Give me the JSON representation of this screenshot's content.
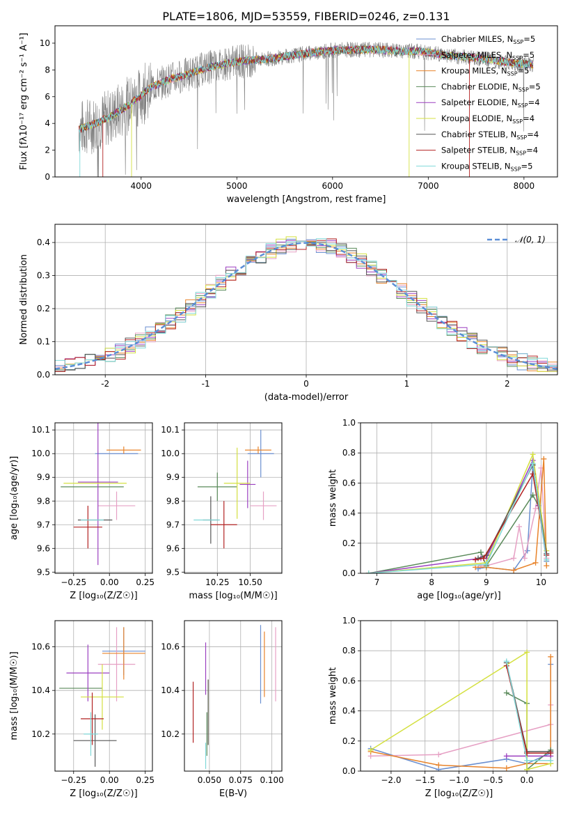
{
  "title": "PLATE=1806, MJD=53559, FIBERID=0246, z=0.131",
  "colors": {
    "chabrier_miles": "#6a8fd0",
    "salpeter_miles": "#e6a0c4",
    "kroupa_miles": "#e8832a",
    "chabrier_elodie": "#5a8a5a",
    "salpeter_elodie": "#9b3fc0",
    "kroupa_elodie": "#d4e040",
    "chabrier_stelib": "#555555",
    "salpeter_stelib": "#b22222",
    "kroupa_stelib": "#7fd8d8",
    "data_spectrum": "#808080",
    "normal_curve": "#5b8ed6",
    "grid": "#b0b0b0"
  },
  "chart_data": [
    {
      "id": "spectrum",
      "type": "line",
      "xlabel": "wavelength [Angstrom, rest frame]",
      "ylabel": "Flux [f$_\\lambda$10$^{-17}$ erg cm$^{-2}$ s$^{-1}$ A$^{-1}$]",
      "ylabel_display": "Flux [fλ10⁻¹⁷ erg cm⁻² s⁻¹ A⁻¹]",
      "xlim": [
        3100,
        8350
      ],
      "ylim": [
        0,
        11.3
      ],
      "xticks": [
        4000,
        5000,
        6000,
        7000,
        8000
      ],
      "yticks": [
        0,
        2,
        4,
        6,
        8,
        10
      ],
      "legend_position": "right",
      "legend": [
        {
          "key": "chabrier_miles",
          "label": "Chabrier MILES, N",
          "n": "5"
        },
        {
          "key": "salpeter_miles",
          "label": "Salpeter MILES, N",
          "n": "5"
        },
        {
          "key": "kroupa_miles",
          "label": "Kroupa MILES, N",
          "n": "5"
        },
        {
          "key": "chabrier_elodie",
          "label": "Chabrier ELODIE, N",
          "n": "5"
        },
        {
          "key": "salpeter_elodie",
          "label": "Salpeter ELODIE, N",
          "n": "4"
        },
        {
          "key": "kroupa_elodie",
          "label": "Kroupa ELODIE, N",
          "n": "4"
        },
        {
          "key": "chabrier_stelib",
          "label": "Chabrier STELIB, N",
          "n": "4"
        },
        {
          "key": "salpeter_stelib",
          "label": "Salpeter STELIB, N",
          "n": "4"
        },
        {
          "key": "kroupa_stelib",
          "label": "Kroupa STELIB, N",
          "n": "5"
        }
      ],
      "legend_sub": "SSP",
      "continuum": {
        "x": [
          3350,
          3500,
          3700,
          3900,
          4100,
          4300,
          4500,
          4700,
          4900,
          5100,
          5300,
          5500,
          5700,
          5900,
          6100,
          6300,
          6500,
          6700,
          6900,
          7100,
          7300,
          7500,
          7700,
          7900,
          8100
        ],
        "y": [
          3.6,
          3.9,
          4.6,
          5.5,
          6.7,
          7.3,
          7.7,
          8.2,
          8.5,
          8.7,
          8.8,
          9.0,
          9.2,
          9.4,
          9.5,
          9.5,
          9.5,
          9.4,
          9.4,
          9.2,
          9.0,
          8.9,
          8.7,
          8.5,
          8.4
        ]
      }
    },
    {
      "id": "residuals",
      "type": "histogram",
      "xlabel": "(data-model)/error",
      "ylabel": "Normed distribution",
      "xlim": [
        -2.5,
        2.5
      ],
      "ylim": [
        0,
        0.455
      ],
      "xticks": [
        -2,
        -1,
        0,
        1,
        2
      ],
      "yticks": [
        0.0,
        0.1,
        0.2,
        0.3,
        0.4
      ],
      "grid": true,
      "legend_position": "top-right",
      "normal_label": "𝒩(0, 1)",
      "bin_width": 0.1
    },
    {
      "id": "z_age",
      "type": "errorbar",
      "xlabel": "Z [log₁₀(Z/Z☉)]",
      "ylabel": "age  [log₁₀(age/yr)]",
      "xlim": [
        -0.38,
        0.3
      ],
      "ylim": [
        9.495,
        10.13
      ],
      "xticks": [
        -0.25,
        0.0,
        0.25
      ],
      "xtick_labels": [
        "−0.25",
        "0.00",
        "0.25"
      ],
      "yticks": [
        9.5,
        9.6,
        9.7,
        9.8,
        9.9,
        10.0,
        10.1
      ],
      "grid": true,
      "points": [
        {
          "s": "chabrier_miles",
          "x": 0.05,
          "xe": 0.15,
          "y": 10.0,
          "ye": 0.0
        },
        {
          "s": "salpeter_miles",
          "x": 0.05,
          "xe": 0.13,
          "y": 9.78,
          "ye": 0.06
        },
        {
          "s": "kroupa_miles",
          "x": 0.1,
          "xe": 0.12,
          "y": 10.015,
          "ye": 0.015
        },
        {
          "s": "chabrier_elodie",
          "x": -0.12,
          "xe": 0.22,
          "y": 9.86,
          "ye": 0.0
        },
        {
          "s": "salpeter_elodie",
          "x": -0.08,
          "xe": 0.14,
          "y": 9.88,
          "ye": 0.35
        },
        {
          "s": "kroupa_elodie",
          "x": -0.1,
          "xe": 0.22,
          "y": 9.875,
          "ye": 0.0
        },
        {
          "s": "chabrier_stelib",
          "x": -0.1,
          "xe": 0.12,
          "y": 9.72,
          "ye": 0.0
        },
        {
          "s": "salpeter_stelib",
          "x": -0.15,
          "xe": 0.1,
          "y": 9.69,
          "ye": 0.09
        },
        {
          "s": "kroupa_stelib",
          "x": -0.12,
          "xe": 0.08,
          "y": 9.72,
          "ye": 0.0
        }
      ]
    },
    {
      "id": "mass_age",
      "type": "errorbar",
      "xlabel": "mass [log₁₀(M/M☉)]",
      "ylabel": "",
      "xlim": [
        10.0,
        10.74
      ],
      "ylim": [
        9.495,
        10.13
      ],
      "xticks": [
        10.25,
        10.5
      ],
      "xtick_labels": [
        "10.25",
        "10.50"
      ],
      "yticks": [
        9.5,
        9.6,
        9.7,
        9.8,
        9.9,
        10.0,
        10.1
      ],
      "grid": true,
      "points": [
        {
          "s": "chabrier_miles",
          "x": 10.58,
          "xe": 0.1,
          "y": 10.0,
          "ye": 0.1
        },
        {
          "s": "salpeter_miles",
          "x": 10.6,
          "xe": 0.1,
          "y": 9.78,
          "ye": 0.06
        },
        {
          "s": "kroupa_miles",
          "x": 10.56,
          "xe": 0.1,
          "y": 10.015,
          "ye": 0.015
        },
        {
          "s": "chabrier_elodie",
          "x": 10.25,
          "xe": 0.15,
          "y": 9.86,
          "ye": 0.06
        },
        {
          "s": "salpeter_elodie",
          "x": 10.48,
          "xe": 0.06,
          "y": 9.87,
          "ye": 0.1
        },
        {
          "s": "kroupa_elodie",
          "x": 10.4,
          "xe": 0.1,
          "y": 9.875,
          "ye": 0.15
        },
        {
          "s": "chabrier_stelib",
          "x": 10.2,
          "xe": 0.06,
          "y": 9.72,
          "ye": 0.1
        },
        {
          "s": "salpeter_stelib",
          "x": 10.3,
          "xe": 0.1,
          "y": 9.7,
          "ye": 0.1
        },
        {
          "s": "kroupa_stelib",
          "x": 10.17,
          "xe": 0.1,
          "y": 9.72,
          "ye": 0.0
        }
      ]
    },
    {
      "id": "age_weight",
      "type": "line",
      "xlabel": "age  [log₁₀(age/yr)]",
      "ylabel": "mass weight",
      "xlim": [
        6.7,
        10.3
      ],
      "ylim": [
        0.0,
        1.0
      ],
      "xticks": [
        7,
        8,
        9,
        10
      ],
      "yticks": [
        0.0,
        0.2,
        0.4,
        0.6,
        0.8,
        1.0
      ],
      "grid": true,
      "series": [
        {
          "s": "chabrier_miles",
          "x": [
            8.85,
            9.0,
            9.5,
            9.75,
            9.85,
            10.1
          ],
          "y": [
            0.03,
            0.04,
            0.02,
            0.15,
            0.72,
            0.08
          ]
        },
        {
          "s": "salpeter_miles",
          "x": [
            8.9,
            9.0,
            9.5,
            9.6,
            9.7,
            9.9,
            10.0,
            10.1
          ],
          "y": [
            0.05,
            0.05,
            0.1,
            0.31,
            0.1,
            0.43,
            0.7,
            0.1
          ]
        },
        {
          "s": "kroupa_miles",
          "x": [
            8.8,
            9.0,
            9.5,
            9.9,
            10.05,
            10.1
          ],
          "y": [
            0.04,
            0.04,
            0.02,
            0.07,
            0.76,
            0.05
          ]
        },
        {
          "s": "chabrier_elodie",
          "x": [
            6.85,
            8.9,
            9.0,
            9.85,
            9.95
          ],
          "y": [
            0.0,
            0.14,
            0.05,
            0.52,
            0.45
          ]
        },
        {
          "s": "salpeter_elodie",
          "x": [
            6.85,
            8.9,
            9.0,
            9.85,
            9.95
          ],
          "y": [
            0.0,
            0.1,
            0.1,
            0.75,
            0.45
          ]
        },
        {
          "s": "kroupa_elodie",
          "x": [
            6.85,
            9.0,
            9.85,
            10.1
          ],
          "y": [
            0.0,
            0.07,
            0.79,
            0.15
          ]
        },
        {
          "s": "chabrier_stelib",
          "x": [
            8.85,
            9.0,
            9.85,
            10.1
          ],
          "y": [
            0.1,
            0.12,
            0.72,
            0.13
          ]
        },
        {
          "s": "salpeter_stelib",
          "x": [
            8.8,
            8.95,
            9.85,
            10.1
          ],
          "y": [
            0.09,
            0.1,
            0.66,
            0.12
          ]
        },
        {
          "s": "kroupa_stelib",
          "x": [
            6.85,
            9.0,
            9.85,
            10.1
          ],
          "y": [
            0.0,
            0.06,
            0.73,
            0.09
          ]
        }
      ]
    },
    {
      "id": "z_mass",
      "type": "errorbar",
      "xlabel": "Z [log₁₀(Z/Z☉)]",
      "ylabel": "mass [log₁₀(M/M☉)]",
      "xlim": [
        -0.38,
        0.3
      ],
      "ylim": [
        10.03,
        10.72
      ],
      "xticks": [
        -0.25,
        0.0,
        0.25
      ],
      "xtick_labels": [
        "−0.25",
        "0.00",
        "0.25"
      ],
      "yticks": [
        10.2,
        10.4,
        10.6
      ],
      "grid": true,
      "points": [
        {
          "s": "chabrier_miles",
          "x": 0.1,
          "xe": 0.15,
          "y": 10.58,
          "ye": 0.11
        },
        {
          "s": "salpeter_miles",
          "x": 0.05,
          "xe": 0.13,
          "y": 10.52,
          "ye": 0.17
        },
        {
          "s": "kroupa_miles",
          "x": 0.1,
          "xe": 0.15,
          "y": 10.57,
          "ye": 0.12
        },
        {
          "s": "chabrier_elodie",
          "x": -0.2,
          "xe": 0.15,
          "y": 10.41,
          "ye": 0.0
        },
        {
          "s": "salpeter_elodie",
          "x": -0.15,
          "xe": 0.15,
          "y": 10.48,
          "ye": 0.13
        },
        {
          "s": "kroupa_elodie",
          "x": -0.05,
          "xe": 0.15,
          "y": 10.37,
          "ye": 0.15
        },
        {
          "s": "chabrier_stelib",
          "x": -0.1,
          "xe": 0.15,
          "y": 10.17,
          "ye": 0.12
        },
        {
          "s": "salpeter_stelib",
          "x": -0.12,
          "xe": 0.08,
          "y": 10.27,
          "ye": 0.12
        },
        {
          "s": "kroupa_stelib",
          "x": -0.13,
          "xe": 0.05,
          "y": 10.2,
          "ye": 0.1
        }
      ]
    },
    {
      "id": "ebv_mass",
      "type": "errorbar",
      "xlabel": "E(B-V)",
      "ylabel": "",
      "xlim": [
        0.03,
        0.108
      ],
      "ylim": [
        10.03,
        10.72
      ],
      "xticks": [
        0.05,
        0.075,
        0.1
      ],
      "xtick_labels": [
        "0.050",
        "0.075",
        "0.100"
      ],
      "yticks": [
        10.2,
        10.4,
        10.6
      ],
      "grid": true,
      "points": [
        {
          "s": "chabrier_miles",
          "x": 0.091,
          "xe": 0.0,
          "y": 10.52,
          "ye": 0.18
        },
        {
          "s": "salpeter_miles",
          "x": 0.103,
          "xe": 0.0,
          "y": 10.52,
          "ye": 0.17
        },
        {
          "s": "kroupa_miles",
          "x": 0.094,
          "xe": 0.0,
          "y": 10.52,
          "ye": 0.15
        },
        {
          "s": "chabrier_elodie",
          "x": 0.048,
          "xe": 0.0,
          "y": 10.2,
          "ye": 0.1
        },
        {
          "s": "salpeter_elodie",
          "x": 0.047,
          "xe": 0.0,
          "y": 10.5,
          "ye": 0.12
        },
        {
          "s": "kroupa_elodie",
          "x": 0.049,
          "xe": 0.0,
          "y": 10.3,
          "ye": 0.15
        },
        {
          "s": "chabrier_stelib",
          "x": 0.049,
          "xe": 0.0,
          "y": 10.3,
          "ye": 0.15
        },
        {
          "s": "salpeter_stelib",
          "x": 0.037,
          "xe": 0.0,
          "y": 10.3,
          "ye": 0.14
        },
        {
          "s": "kroupa_stelib",
          "x": 0.047,
          "xe": 0.0,
          "y": 10.1,
          "ye": 0.06
        }
      ]
    },
    {
      "id": "z_weight",
      "type": "line",
      "xlabel": "Z [log₁₀(Z/Z☉)]",
      "ylabel": "mass weight",
      "xlim": [
        -2.45,
        0.45
      ],
      "ylim": [
        0.0,
        1.0
      ],
      "xticks": [
        -2.0,
        -1.5,
        -1.0,
        -0.5,
        0.0
      ],
      "xtick_labels": [
        "−2.0",
        "−1.5",
        "−1.0",
        "−0.5",
        "0.0"
      ],
      "yticks": [
        0.0,
        0.2,
        0.4,
        0.6,
        0.8,
        1.0
      ],
      "grid": true,
      "series": [
        {
          "s": "chabrier_miles",
          "x": [
            -2.3,
            -1.3,
            -0.3,
            0.0,
            0.35,
            0.35
          ],
          "y": [
            0.15,
            0.01,
            0.08,
            0.05,
            0.12,
            0.71
          ]
        },
        {
          "s": "salpeter_miles",
          "x": [
            -2.3,
            -1.3,
            0.35,
            0.35
          ],
          "y": [
            0.1,
            0.11,
            0.31,
            0.44
          ]
        },
        {
          "s": "kroupa_miles",
          "x": [
            -2.3,
            -1.3,
            -0.3,
            0.0,
            0.35,
            0.35
          ],
          "y": [
            0.13,
            0.04,
            0.02,
            0.05,
            0.05,
            0.76
          ]
        },
        {
          "s": "chabrier_elodie",
          "x": [
            -0.3,
            0.0,
            0.0,
            0.35
          ],
          "y": [
            0.52,
            0.45,
            0.01,
            0.14
          ]
        },
        {
          "s": "salpeter_elodie",
          "x": [
            -0.3,
            0.0,
            0.35
          ],
          "y": [
            0.1,
            0.1,
            0.1
          ]
        },
        {
          "s": "kroupa_elodie",
          "x": [
            -2.3,
            0.0,
            0.0,
            0.35
          ],
          "y": [
            0.14,
            0.79,
            0.01,
            0.05
          ]
        },
        {
          "s": "chabrier_stelib",
          "x": [
            -0.3,
            0.0,
            0.35
          ],
          "y": [
            0.72,
            0.13,
            0.13
          ]
        },
        {
          "s": "salpeter_stelib",
          "x": [
            -0.3,
            0.0,
            0.0,
            0.35
          ],
          "y": [
            0.7,
            0.12,
            0.12,
            0.12
          ]
        },
        {
          "s": "kroupa_stelib",
          "x": [
            -0.3,
            0.0,
            0.35
          ],
          "y": [
            0.73,
            0.07,
            0.07
          ]
        }
      ]
    }
  ]
}
